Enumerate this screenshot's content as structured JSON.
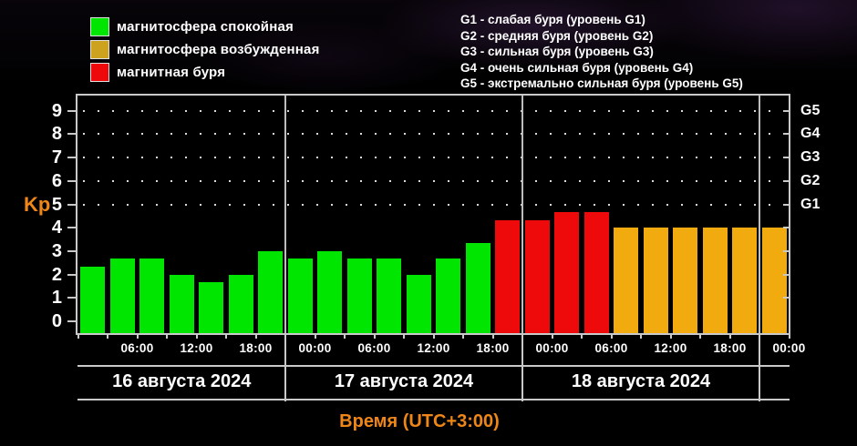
{
  "legend": {
    "items": [
      {
        "label": "магнитосфера спокойная",
        "status": "quiet"
      },
      {
        "label": "магнитосфера возбужденная",
        "status": "excited"
      },
      {
        "label": "магнитная буря",
        "status": "storm"
      }
    ]
  },
  "glossary": {
    "lines": [
      "G1 - слабая буря (уровень G1)",
      "G2 - средняя буря (уровень G2)",
      "G3 - сильная буря (уровень G3)",
      "G4 - очень сильная буря (уровень G4)",
      "G5 - экстремально сильная буря (уровень G5)"
    ]
  },
  "colors": {
    "accent": "#ef8618",
    "axis": "#c9c9c9",
    "text": "#ffffff",
    "bar": {
      "quiet": "#00e600",
      "excited": "#f2ab0e",
      "storm": "#ee0a0a"
    },
    "legend": {
      "quiet": "#00e600",
      "excited": "#cda21e",
      "storm": "#ee0a0a"
    }
  },
  "chart_data": {
    "type": "bar",
    "ylabel_left": "Kp",
    "xlabel": "Время (UTC+3:00)",
    "ylim": [
      0,
      9.6
    ],
    "y_ticks": [
      0,
      1,
      2,
      3,
      4,
      5,
      6,
      7,
      8,
      9
    ],
    "grid_dotted_at": [
      5,
      6,
      7,
      8,
      9
    ],
    "right_axis_labels": [
      {
        "kp": 5,
        "label": "G1"
      },
      {
        "kp": 6,
        "label": "G2"
      },
      {
        "kp": 7,
        "label": "G3"
      },
      {
        "kp": 8,
        "label": "G4"
      },
      {
        "kp": 9,
        "label": "G5"
      }
    ],
    "x_tick_labels": [
      "06:00",
      "12:00",
      "18:00",
      "00:00",
      "06:00",
      "12:00",
      "18:00",
      "00:00",
      "06:00",
      "12:00",
      "18:00",
      "00:00"
    ],
    "bar_interval_hours": 3,
    "days": [
      {
        "label": "16 августа 2024",
        "bars": [
          {
            "kp": 2.33,
            "status": "quiet"
          },
          {
            "kp": 2.67,
            "status": "quiet"
          },
          {
            "kp": 2.67,
            "status": "quiet"
          },
          {
            "kp": 2.0,
            "status": "quiet"
          },
          {
            "kp": 1.67,
            "status": "quiet"
          },
          {
            "kp": 2.0,
            "status": "quiet"
          },
          {
            "kp": 3.0,
            "status": "quiet"
          }
        ]
      },
      {
        "label": "17 августа 2024",
        "bars": [
          {
            "kp": 2.67,
            "status": "quiet"
          },
          {
            "kp": 3.0,
            "status": "quiet"
          },
          {
            "kp": 2.67,
            "status": "quiet"
          },
          {
            "kp": 2.67,
            "status": "quiet"
          },
          {
            "kp": 2.0,
            "status": "quiet"
          },
          {
            "kp": 2.67,
            "status": "quiet"
          },
          {
            "kp": 3.33,
            "status": "quiet"
          },
          {
            "kp": 4.33,
            "status": "storm"
          }
        ]
      },
      {
        "label": "18 августа 2024",
        "bars": [
          {
            "kp": 4.33,
            "status": "storm"
          },
          {
            "kp": 4.67,
            "status": "storm"
          },
          {
            "kp": 4.67,
            "status": "storm"
          },
          {
            "kp": 4.0,
            "status": "excited"
          },
          {
            "kp": 4.0,
            "status": "excited"
          },
          {
            "kp": 4.0,
            "status": "excited"
          },
          {
            "kp": 4.0,
            "status": "excited"
          },
          {
            "kp": 4.0,
            "status": "excited"
          }
        ]
      },
      {
        "label": "",
        "bars": [
          {
            "kp": 4.0,
            "status": "excited"
          }
        ]
      }
    ]
  }
}
